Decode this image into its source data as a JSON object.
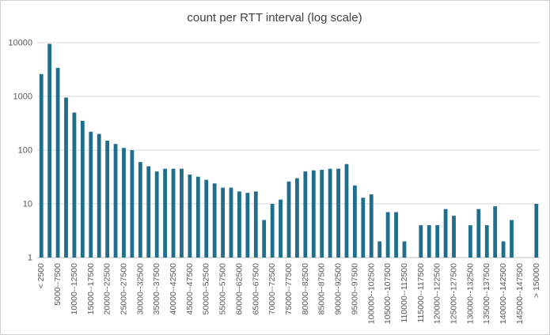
{
  "chart_data": {
    "type": "bar",
    "title": "count per RTT interval (log scale)",
    "scale": "log",
    "grid": "horizontal",
    "legend": "none",
    "ylim": [
      1,
      10000
    ],
    "y_tick_labels": [
      "1",
      "10",
      "100",
      "1000",
      "10000"
    ],
    "tick_step": 2,
    "x_tick_labels": [
      "< 2500",
      "5000--7500",
      "10000--12500",
      "15000--17500",
      "20000--22500",
      "25000--27500",
      "30000--32500",
      "35000--37500",
      "40000--42500",
      "45000--47500",
      "50000--52500",
      "55000--57500",
      "60000--62500",
      "65000--67500",
      "70000--72500",
      "75000--77500",
      "80000--82500",
      "85000--87500",
      "90000--92500",
      "95000--97500",
      "100000--102500",
      "105000--107500",
      "110000--112500",
      "115000--117500",
      "120000--122500",
      "125000--127500",
      "130000--132500",
      "135000--137500",
      "140000--142500",
      "145000--147500",
      "> 150000"
    ],
    "values": [
      2600,
      9500,
      3400,
      950,
      500,
      350,
      220,
      200,
      150,
      130,
      110,
      100,
      60,
      50,
      40,
      45,
      45,
      45,
      35,
      32,
      28,
      24,
      20,
      20,
      17,
      16,
      17,
      5,
      10,
      12,
      26,
      30,
      40,
      42,
      43,
      45,
      45,
      55,
      22,
      13,
      15,
      2,
      7,
      7,
      2,
      0,
      4,
      4,
      4,
      8,
      6,
      0,
      4,
      8,
      4,
      9,
      2,
      5,
      0,
      0,
      10
    ],
    "bar_color": "#1f6e8c",
    "gridline_color": "#d9d9d9",
    "axis_color": "#bfbfbf",
    "text_color": "#595959",
    "title_color": "#3f3f3f"
  }
}
